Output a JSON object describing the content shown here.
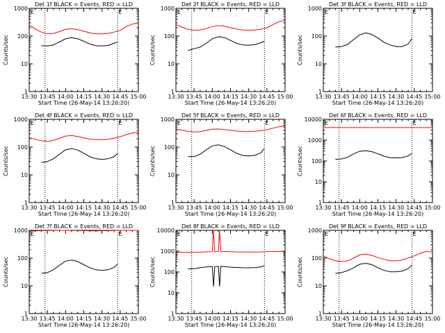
{
  "chart_data": [
    {
      "type": "line",
      "title": "Det 1f BLACK = Events, RED = LLD",
      "xlabel": "Start Time (26-May-14 13:26:20)",
      "ylabel": "Counts/sec",
      "yscale": "log",
      "ylim": [
        1,
        1000
      ],
      "xlim": [
        "13:30",
        "15:00"
      ],
      "xticks": [
        "13:30",
        "13:45",
        "14:00",
        "14:15",
        "14:30",
        "14:45",
        "15:00"
      ],
      "yticks": [
        "1",
        "10",
        "100",
        "1000"
      ],
      "markers": [
        "13:43",
        "14:43"
      ],
      "flags": [
        "E",
        "E"
      ],
      "series": [
        {
          "color": "#ff0000",
          "x": [
            "13:30",
            "13:35",
            "13:40",
            "13:45",
            "13:50",
            "13:55",
            "14:00",
            "14:05",
            "14:10",
            "14:15",
            "14:20",
            "14:25",
            "14:30",
            "14:35",
            "14:40",
            "14:45",
            "14:50",
            "14:55",
            "15:00"
          ],
          "values": [
            250,
            180,
            140,
            120,
            125,
            145,
            175,
            185,
            170,
            150,
            130,
            120,
            120,
            125,
            140,
            160,
            220,
            270,
            300
          ]
        },
        {
          "color": "#000000",
          "x": [
            "13:40",
            "13:45",
            "13:50",
            "13:55",
            "14:00",
            "14:05",
            "14:10",
            "14:15",
            "14:20",
            "14:25",
            "14:30",
            "14:35",
            "14:40",
            "14:43"
          ],
          "values": [
            45,
            44,
            48,
            62,
            80,
            88,
            80,
            65,
            52,
            45,
            44,
            46,
            55,
            62
          ]
        }
      ]
    },
    {
      "type": "line",
      "title": "Det 2f BLACK = Events, RED = LLD",
      "xlabel": "Start Time (26-May-14 13:26:20)",
      "ylabel": "Counts/sec",
      "yscale": "log",
      "ylim": [
        1,
        1000
      ],
      "xlim": [
        "13:30",
        "15:00"
      ],
      "xticks": [
        "13:30",
        "13:45",
        "14:00",
        "14:15",
        "14:30",
        "14:45",
        "15:00"
      ],
      "yticks": [
        "1",
        "10",
        "100",
        "1000"
      ],
      "markers": [
        "13:43",
        "14:43"
      ],
      "flags": [
        "E",
        "E"
      ],
      "series": [
        {
          "color": "#ff0000",
          "x": [
            "13:30",
            "13:35",
            "13:40",
            "13:45",
            "13:50",
            "13:55",
            "14:00",
            "14:05",
            "14:10",
            "14:15",
            "14:20",
            "14:25",
            "14:30",
            "14:35",
            "14:40",
            "14:45",
            "14:50",
            "14:55",
            "15:00"
          ],
          "values": [
            260,
            210,
            175,
            160,
            165,
            185,
            220,
            240,
            225,
            200,
            180,
            165,
            160,
            165,
            175,
            200,
            260,
            330,
            370
          ]
        },
        {
          "color": "#000000",
          "x": [
            "13:40",
            "13:45",
            "13:50",
            "13:55",
            "14:00",
            "14:05",
            "14:10",
            "14:15",
            "14:20",
            "14:25",
            "14:30",
            "14:35",
            "14:40",
            "14:43"
          ],
          "values": [
            30,
            35,
            40,
            55,
            80,
            95,
            88,
            70,
            55,
            48,
            47,
            49,
            58,
            65
          ]
        }
      ]
    },
    {
      "type": "line",
      "title": "Det 3f BLACK = Events, RED = LLD",
      "xlabel": "Start Time (26-May-14 13:26:20)",
      "ylabel": "Counts/sec",
      "yscale": "log",
      "ylim": [
        1,
        1000
      ],
      "xlim": [
        "13:30",
        "15:00"
      ],
      "xticks": [
        "13:30",
        "13:45",
        "14:00",
        "14:15",
        "14:30",
        "14:45",
        "15:00"
      ],
      "yticks": [
        "1",
        "10",
        "100",
        "1000"
      ],
      "markers": [
        "13:43",
        "14:43"
      ],
      "flags": [
        "E",
        "E"
      ],
      "series": [
        {
          "color": "#000000",
          "x": [
            "13:40",
            "13:45",
            "13:50",
            "13:55",
            "14:00",
            "14:05",
            "14:10",
            "14:15",
            "14:20",
            "14:25",
            "14:30",
            "14:35",
            "14:40",
            "14:43"
          ],
          "values": [
            40,
            42,
            50,
            75,
            110,
            130,
            115,
            85,
            60,
            48,
            42,
            42,
            52,
            80
          ]
        }
      ]
    },
    {
      "type": "line",
      "title": "Det 4f BLACK = Events, RED = LLD",
      "xlabel": "Start Time (26-May-14 13:26:20)",
      "ylabel": "Counts/sec",
      "yscale": "log",
      "ylim": [
        1,
        1000
      ],
      "xlim": [
        "13:30",
        "15:00"
      ],
      "xticks": [
        "13:30",
        "13:45",
        "14:00",
        "14:15",
        "14:30",
        "14:45",
        "15:00"
      ],
      "yticks": [
        "1",
        "10",
        "100",
        "1000"
      ],
      "markers": [
        "13:43",
        "14:43"
      ],
      "flags": [
        "E",
        "E"
      ],
      "series": [
        {
          "color": "#ff0000",
          "x": [
            "13:30",
            "13:35",
            "13:40",
            "13:45",
            "13:50",
            "13:55",
            "14:00",
            "14:05",
            "14:10",
            "14:15",
            "14:20",
            "14:25",
            "14:30",
            "14:35",
            "14:40",
            "14:45",
            "14:50",
            "14:55",
            "15:00"
          ],
          "values": [
            220,
            190,
            170,
            160,
            175,
            205,
            250,
            260,
            240,
            215,
            195,
            185,
            185,
            190,
            210,
            235,
            280,
            320,
            340
          ]
        },
        {
          "color": "#000000",
          "x": [
            "13:40",
            "13:45",
            "13:50",
            "13:55",
            "14:00",
            "14:05",
            "14:10",
            "14:15",
            "14:20",
            "14:25",
            "14:30",
            "14:35",
            "14:40",
            "14:43"
          ],
          "values": [
            28,
            30,
            38,
            55,
            80,
            88,
            78,
            60,
            45,
            38,
            36,
            38,
            45,
            60
          ]
        }
      ]
    },
    {
      "type": "line",
      "title": "Det 5f BLACK = Events, RED = LLD",
      "xlabel": "Start Time (26-May-14 13:26:20)",
      "ylabel": "Counts/sec",
      "yscale": "log",
      "ylim": [
        1,
        1000
      ],
      "xlim": [
        "13:30",
        "15:00"
      ],
      "xticks": [
        "13:30",
        "13:45",
        "14:00",
        "14:15",
        "14:30",
        "14:45",
        "15:00"
      ],
      "yticks": [
        "1",
        "10",
        "100",
        "1000"
      ],
      "markers": [
        "13:43",
        "14:43"
      ],
      "flags": [
        "E",
        "E"
      ],
      "series": [
        {
          "color": "#ff0000",
          "x": [
            "13:30",
            "13:35",
            "13:40",
            "13:45",
            "13:50",
            "13:55",
            "14:00",
            "14:05",
            "14:10",
            "14:15",
            "14:20",
            "14:25",
            "14:30",
            "14:35",
            "14:40",
            "14:45",
            "14:50",
            "14:55",
            "15:00"
          ],
          "values": [
            450,
            400,
            370,
            350,
            360,
            400,
            440,
            450,
            430,
            400,
            380,
            360,
            360,
            370,
            390,
            420,
            480,
            540,
            580
          ]
        },
        {
          "color": "#000000",
          "x": [
            "13:40",
            "13:45",
            "13:50",
            "13:55",
            "14:00",
            "14:05",
            "14:10",
            "14:15",
            "14:20",
            "14:25",
            "14:30",
            "14:35",
            "14:40",
            "14:43"
          ],
          "values": [
            45,
            46,
            55,
            80,
            110,
            120,
            105,
            80,
            60,
            50,
            48,
            50,
            62,
            90
          ]
        }
      ]
    },
    {
      "type": "line",
      "title": "Det 6f BLACK = Events, RED = LLD",
      "xlabel": "Start Time (26-May-14 13:26:20)",
      "ylabel": "Counts/sec",
      "yscale": "log",
      "ylim": [
        1,
        10000
      ],
      "xlim": [
        "13:30",
        "15:00"
      ],
      "xticks": [
        "13:30",
        "13:45",
        "14:00",
        "14:15",
        "14:30",
        "14:45",
        "15:00"
      ],
      "yticks": [
        "1",
        "10",
        "100",
        "1000",
        "10000"
      ],
      "markers": [
        "13:43",
        "14:43"
      ],
      "flags": [
        "E",
        "E"
      ],
      "series": [
        {
          "color": "#ff0000",
          "x": [
            "13:30",
            "15:00"
          ],
          "values": [
            4000,
            4000
          ]
        },
        {
          "color": "#000000",
          "x": [
            "13:40",
            "13:45",
            "13:50",
            "13:55",
            "14:00",
            "14:05",
            "14:10",
            "14:15",
            "14:20",
            "14:25",
            "14:30",
            "14:35",
            "14:40",
            "14:43"
          ],
          "values": [
            120,
            125,
            150,
            220,
            290,
            310,
            280,
            220,
            170,
            145,
            140,
            145,
            175,
            230
          ]
        }
      ]
    },
    {
      "type": "line",
      "title": "Det 7f BLACK = Events, RED = LLD",
      "xlabel": "Start Time (26-May-14 13:26:20)",
      "ylabel": "Counts/sec",
      "yscale": "log",
      "ylim": [
        1,
        1000
      ],
      "xlim": [
        "13:30",
        "15:00"
      ],
      "xticks": [
        "13:30",
        "13:45",
        "14:00",
        "14:15",
        "14:30",
        "14:45",
        "15:00"
      ],
      "yticks": [
        "1",
        "10",
        "100",
        "1000"
      ],
      "markers": [
        "13:43",
        "14:43"
      ],
      "flags": [
        "E",
        "E"
      ],
      "series": [
        {
          "color": "#ff0000",
          "x": [
            "13:30",
            "13:35",
            "13:40",
            "13:45",
            "13:50",
            "13:55",
            "14:00",
            "14:05",
            "14:10",
            "14:15",
            "14:20",
            "14:25",
            "14:30",
            "14:35",
            "14:40",
            "14:45",
            "14:50",
            "14:55",
            "15:00"
          ],
          "values": [
            950,
            960,
            970,
            980,
            990,
            1000,
            1000,
            990,
            980,
            970,
            960,
            960,
            970,
            980,
            990,
            1000,
            1000,
            1000,
            1000
          ]
        },
        {
          "color": "#000000",
          "x": [
            "13:40",
            "13:45",
            "13:50",
            "13:55",
            "14:00",
            "14:05",
            "14:10",
            "14:15",
            "14:20",
            "14:25",
            "14:30",
            "14:35",
            "14:40",
            "14:43"
          ],
          "values": [
            28,
            30,
            38,
            55,
            78,
            85,
            75,
            58,
            45,
            38,
            36,
            38,
            46,
            62
          ]
        }
      ]
    },
    {
      "type": "line",
      "title": "Det 8f BLACK = Events, RED = LLD",
      "xlabel": "Start Time (26-May-14 13:26:20)",
      "ylabel": "Counts/sec",
      "yscale": "log",
      "ylim": [
        1,
        10000
      ],
      "xlim": [
        "13:30",
        "15:00"
      ],
      "xticks": [
        "13:30",
        "13:45",
        "14:00",
        "14:15",
        "14:30",
        "14:45",
        "15:00"
      ],
      "yticks": [
        "1",
        "10",
        "100",
        "1000",
        "10000"
      ],
      "markers": [
        "13:43",
        "14:43"
      ],
      "flags": [
        "E",
        "E"
      ],
      "series": [
        {
          "color": "#ff0000",
          "x": [
            "13:30",
            "13:35",
            "13:40",
            "13:45",
            "13:50",
            "13:55",
            "14:00",
            "14:01",
            "14:02",
            "14:05",
            "14:06",
            "14:07",
            "14:10",
            "14:15",
            "14:20",
            "14:25",
            "14:30",
            "14:35",
            "14:40",
            "14:45",
            "14:50",
            "14:55",
            "15:00"
          ],
          "values": [
            900,
            880,
            870,
            880,
            900,
            920,
            950,
            10000,
            950,
            960,
            10000,
            960,
            960,
            940,
            920,
            910,
            900,
            910,
            920,
            950,
            960,
            970,
            980
          ]
        },
        {
          "color": "#000000",
          "x": [
            "13:40",
            "13:45",
            "13:50",
            "13:55",
            "14:00",
            "14:01",
            "14:02",
            "14:05",
            "14:06",
            "14:07",
            "14:10",
            "14:15",
            "14:20",
            "14:25",
            "14:30",
            "14:35",
            "14:40",
            "14:43"
          ],
          "values": [
            140,
            145,
            160,
            175,
            180,
            20,
            180,
            185,
            20,
            185,
            180,
            170,
            165,
            160,
            158,
            162,
            175,
            200
          ]
        }
      ]
    },
    {
      "type": "line",
      "title": "Det 9f BLACK = Events, RED = LLD",
      "xlabel": "Start Time (26-May-14 13:26:20)",
      "ylabel": "Counts/sec",
      "yscale": "log",
      "ylim": [
        1,
        1000
      ],
      "xlim": [
        "13:30",
        "15:00"
      ],
      "xticks": [
        "13:30",
        "13:45",
        "14:00",
        "14:15",
        "14:30",
        "14:45",
        "15:00"
      ],
      "yticks": [
        "1",
        "10",
        "100",
        "1000"
      ],
      "markers": [
        "13:43",
        "14:43"
      ],
      "flags": [
        "E",
        "E"
      ],
      "series": [
        {
          "color": "#ff0000",
          "x": [
            "13:30",
            "13:35",
            "13:40",
            "13:45",
            "13:50",
            "13:55",
            "14:00",
            "14:05",
            "14:10",
            "14:15",
            "14:20",
            "14:25",
            "14:30",
            "14:35",
            "14:40",
            "14:45",
            "14:50",
            "14:55",
            "15:00"
          ],
          "values": [
            120,
            95,
            80,
            75,
            80,
            100,
            130,
            140,
            125,
            105,
            90,
            80,
            80,
            85,
            100,
            120,
            150,
            175,
            165
          ]
        },
        {
          "color": "#000000",
          "x": [
            "13:40",
            "13:45",
            "13:50",
            "13:55",
            "14:00",
            "14:05",
            "14:10",
            "14:15",
            "14:20",
            "14:25",
            "14:30",
            "14:35",
            "14:40",
            "14:43"
          ],
          "values": [
            28,
            30,
            35,
            45,
            60,
            65,
            58,
            45,
            36,
            32,
            32,
            34,
            42,
            55
          ]
        }
      ]
    }
  ]
}
